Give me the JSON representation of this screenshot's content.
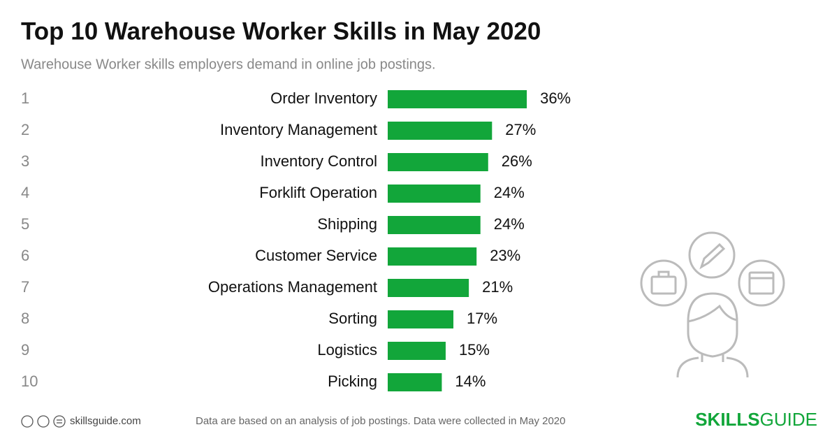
{
  "chart_data": {
    "type": "hbar",
    "title": "Top 10 Warehouse Worker Skills in May 2020",
    "subtitle": "Warehouse Worker skills employers demand in online job postings.",
    "ranks": [
      1,
      2,
      3,
      4,
      5,
      6,
      7,
      8,
      9,
      10
    ],
    "categories": [
      "Order Inventory",
      "Inventory Management",
      "Inventory Control",
      "Forklift Operation",
      "Shipping",
      "Customer Service",
      "Operations Management",
      "Sorting",
      "Logistics",
      "Picking"
    ],
    "values": [
      36,
      27,
      26,
      24,
      24,
      23,
      21,
      17,
      15,
      14
    ],
    "value_labels": [
      "36%",
      "27%",
      "26%",
      "24%",
      "24%",
      "23%",
      "21%",
      "17%",
      "15%",
      "14%"
    ],
    "color": "#12a63a",
    "source": "skillsguide.com",
    "note": "Data are based on an analysis of job postings. Data were collected in May 2020",
    "logo_bold": "SKILLS",
    "logo_light": "GUIDE"
  }
}
